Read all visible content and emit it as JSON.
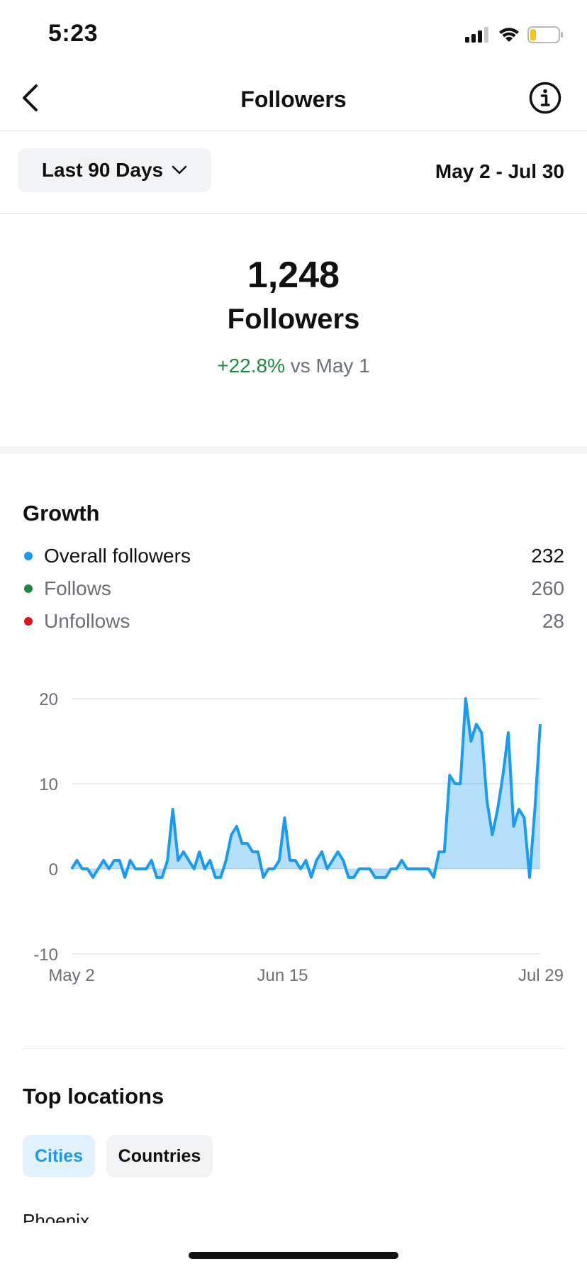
{
  "status_bar": {
    "time": "5:23"
  },
  "header": {
    "title": "Followers"
  },
  "range": {
    "selector_label": "Last 90 Days",
    "date_range": "May 2 - Jul 30"
  },
  "summary": {
    "count": "1,248",
    "label": "Followers",
    "change_value": "+22.8%",
    "change_suffix": " vs May 1"
  },
  "growth": {
    "title": "Growth",
    "legend": [
      {
        "label": "Overall followers",
        "value": "232",
        "color": "#1a9af1",
        "label_color": "#111111"
      },
      {
        "label": "Follows",
        "value": "260",
        "color": "#1d8a3e",
        "label_color": "#6b6f76"
      },
      {
        "label": "Unfollows",
        "value": "28",
        "color": "#e0121b",
        "label_color": "#6b6f76"
      }
    ]
  },
  "chart_data": {
    "type": "area",
    "x_tick_labels": [
      "May 2",
      "Jun 15",
      "Jul 29"
    ],
    "y_ticks": [
      20,
      10,
      0,
      -10
    ],
    "ylim": [
      -10,
      20
    ],
    "grid": true,
    "series": [
      {
        "color": "#1a9af1",
        "values": [
          0,
          1,
          0,
          0,
          -1,
          0,
          1,
          0,
          1,
          1,
          -1,
          1,
          0,
          0,
          0,
          1,
          -1,
          -1,
          1,
          7,
          1,
          2,
          1,
          0,
          2,
          0,
          1,
          -1,
          -1,
          1,
          4,
          5,
          3,
          3,
          2,
          2,
          -1,
          0,
          0,
          1,
          6,
          1,
          1,
          0,
          1,
          -1,
          1,
          2,
          0,
          1,
          2,
          1,
          -1,
          -1,
          0,
          0,
          0,
          -1,
          -1,
          -1,
          0,
          0,
          1,
          0,
          0,
          0,
          0,
          0,
          -1,
          2,
          2,
          11,
          10,
          10,
          20,
          15,
          17,
          16,
          8,
          4,
          7,
          11,
          16,
          5,
          7,
          6,
          -1,
          7,
          17
        ]
      }
    ]
  },
  "locations": {
    "title": "Top locations",
    "tabs": [
      "Cities",
      "Countries"
    ],
    "first_city": "Phoenix"
  }
}
